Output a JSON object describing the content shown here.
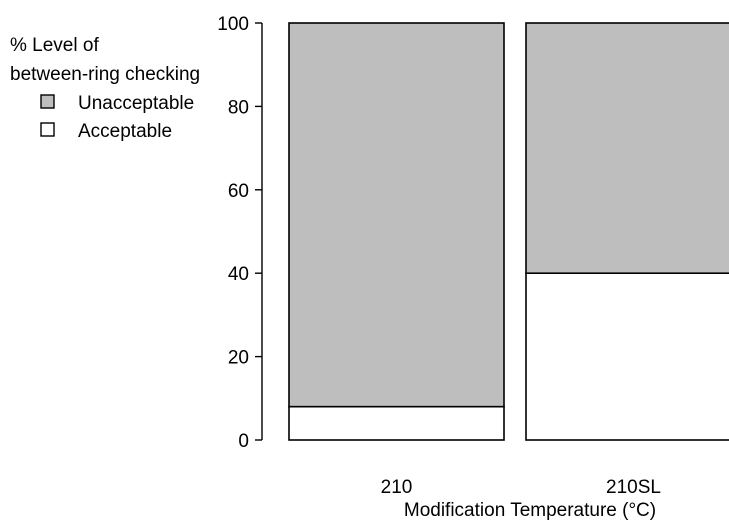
{
  "chart_data": {
    "type": "bar",
    "stacked": true,
    "normalized": true,
    "categories": [
      "210",
      "210SL"
    ],
    "series": [
      {
        "name": "Acceptable",
        "values": [
          8,
          40
        ],
        "color": "#ffffff"
      },
      {
        "name": "Unacceptable",
        "values": [
          92,
          60
        ],
        "color": "#bebebe"
      }
    ],
    "xlabel": "Modification Temperature (°C)",
    "ylabel": "",
    "ylim": [
      0,
      100
    ],
    "yticks": [
      0,
      20,
      40,
      60,
      80,
      100
    ],
    "grid": false,
    "legend": {
      "title_lines": [
        "% Level of",
        "between-ring checking"
      ],
      "placement": "top-left",
      "order": [
        "Unacceptable",
        "Acceptable"
      ]
    }
  }
}
